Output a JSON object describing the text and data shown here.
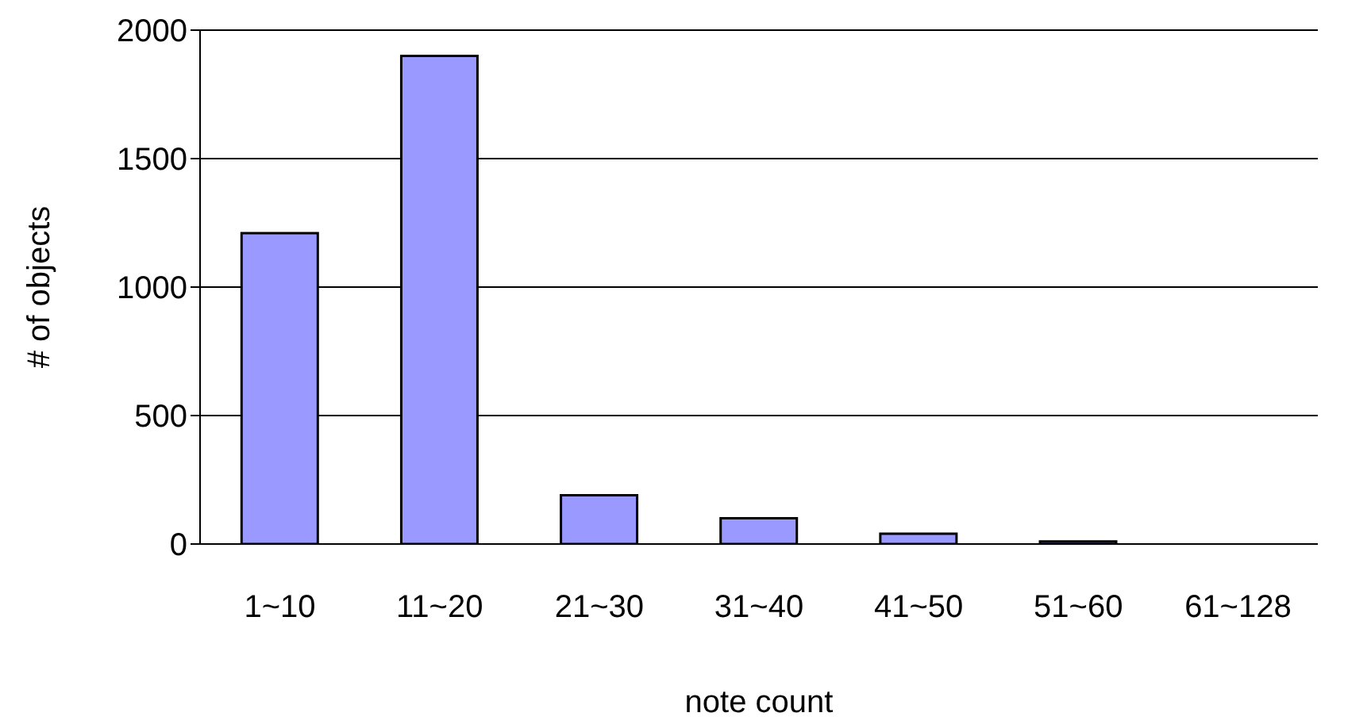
{
  "chart_data": {
    "type": "bar",
    "xlabel": "note count",
    "ylabel": "# of objects",
    "categories": [
      "1~10",
      "11~20",
      "21~30",
      "31~40",
      "41~50",
      "51~60",
      "61~128"
    ],
    "values": [
      1210,
      1900,
      190,
      100,
      40,
      10,
      null
    ],
    "color": "#9999ff",
    "ylim": [
      0,
      2000
    ],
    "yticks": [
      0,
      500,
      1000,
      1500,
      2000
    ],
    "grid": "y"
  }
}
